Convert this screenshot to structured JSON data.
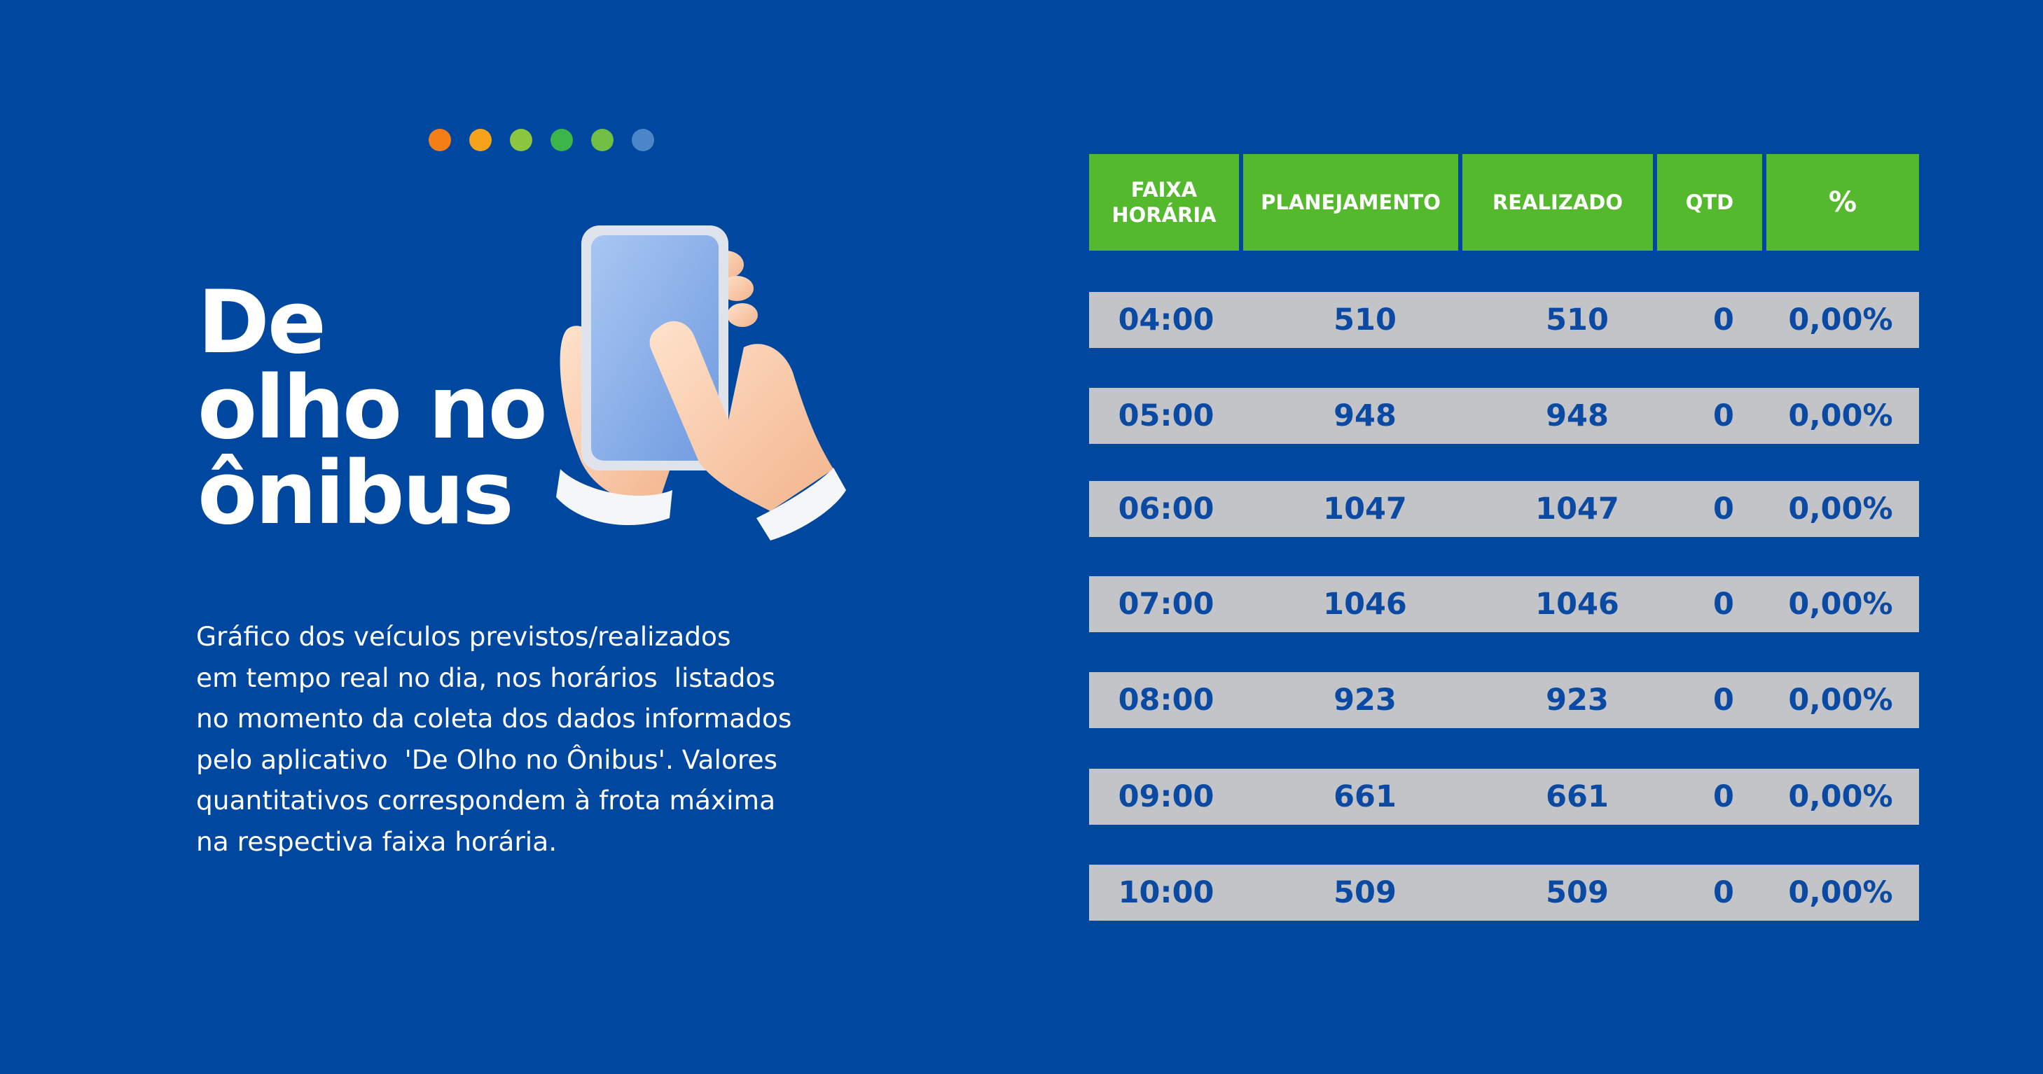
{
  "colors": {
    "background": "#0047a0",
    "header_bg": "#55b92e",
    "row_bg": "#c2c4c7",
    "row_text": "#0a4aa3",
    "dots": [
      "#f57f17",
      "#f7a21b",
      "#8cc63f",
      "#3cb54a",
      "#71bf44",
      "#4a86c8"
    ]
  },
  "title_lines": [
    "De",
    "olho no",
    "ônibus"
  ],
  "description_lines": [
    "Gráfico dos veículos previstos/realizados",
    "em tempo real no dia, nos horários  listados",
    "no momento da coleta dos dados informados",
    "pelo aplicativo  'De Olho no Ônibus'. Valores",
    "quantitativos correspondem à frota máxima",
    "na respectiva faixa horária."
  ],
  "illustration": {
    "icon": "hand-holding-smartphone-icon"
  },
  "table": {
    "headers": [
      "FAIXA\nHORÁRIA",
      "PLANEJAMENTO",
      "REALIZADO",
      "QTD",
      "%"
    ],
    "rows": [
      {
        "time": "04:00",
        "planned": "510",
        "done": "510",
        "qtd": "0",
        "pct": "0,00%"
      },
      {
        "time": "05:00",
        "planned": "948",
        "done": "948",
        "qtd": "0",
        "pct": "0,00%"
      },
      {
        "time": "06:00",
        "planned": "1047",
        "done": "1047",
        "qtd": "0",
        "pct": "0,00%"
      },
      {
        "time": "07:00",
        "planned": "1046",
        "done": "1046",
        "qtd": "0",
        "pct": "0,00%"
      },
      {
        "time": "08:00",
        "planned": "923",
        "done": "923",
        "qtd": "0",
        "pct": "0,00%"
      },
      {
        "time": "09:00",
        "planned": "661",
        "done": "661",
        "qtd": "0",
        "pct": "0,00%"
      },
      {
        "time": "10:00",
        "planned": "509",
        "done": "509",
        "qtd": "0",
        "pct": "0,00%"
      }
    ]
  }
}
